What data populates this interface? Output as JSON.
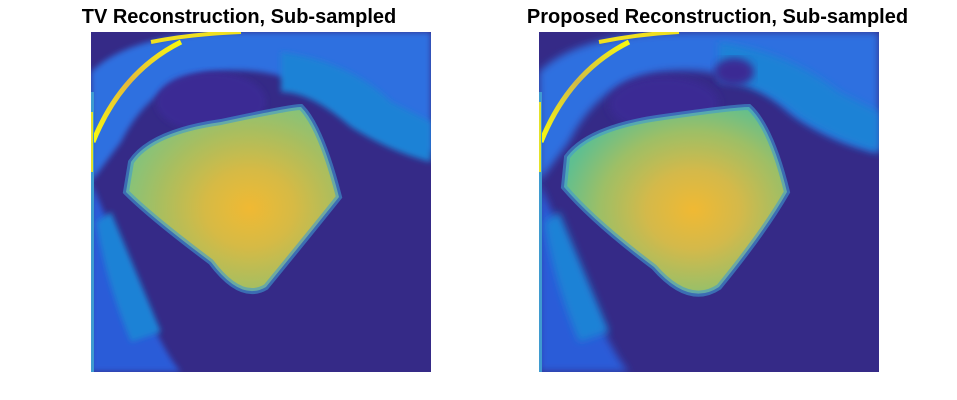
{
  "figure": {
    "panels": [
      {
        "title": "TV Reconstruction, Sub-sampled"
      },
      {
        "title": "Proposed Reconstruction, Sub-sampled"
      }
    ],
    "colormap": {
      "name": "parula",
      "background": "#352a87",
      "low": "#2f58d6",
      "mid_low": "#1f82d6",
      "mid": "#4fb1a6",
      "mid_high": "#a5be6a",
      "high": "#e4b93a",
      "peak": "#f9fb0e"
    }
  }
}
